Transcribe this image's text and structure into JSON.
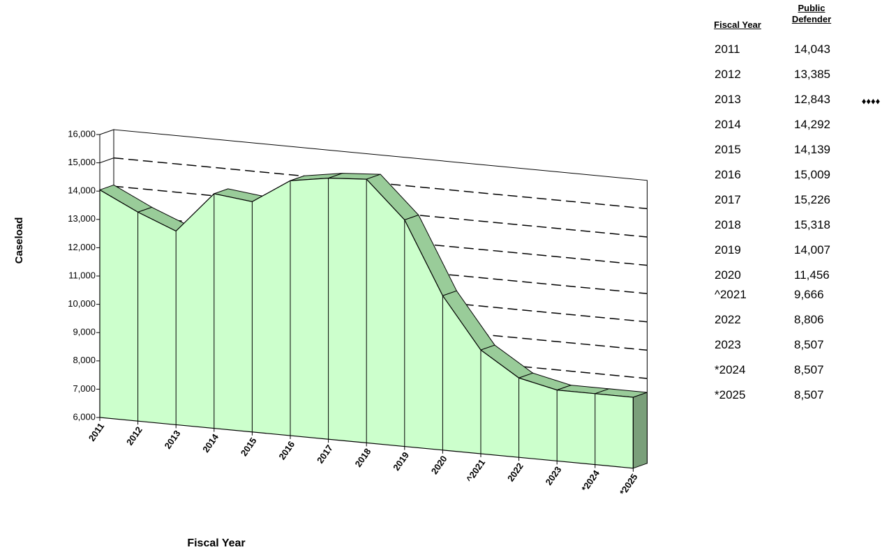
{
  "chart_data": {
    "type": "area3d",
    "y_label": "Caseload",
    "x_label": "Fiscal Year",
    "categories": [
      "2011",
      "2012",
      "2013",
      "2014",
      "2015",
      "2016",
      "2017",
      "2018",
      "2019",
      "2020",
      "^2021",
      "2022",
      "2023",
      "*2024",
      "*2025"
    ],
    "values": [
      14043,
      13385,
      12843,
      14292,
      14139,
      15009,
      15226,
      15318,
      14007,
      11456,
      9666,
      8806,
      8507,
      8507,
      8507
    ],
    "value_labels": [
      "14,043",
      "13,385",
      "12,843",
      "14,292",
      "14,139",
      "15,009",
      "15,226",
      "15,318",
      "14,007",
      "11,456",
      "9,666",
      "8,806",
      "8,507",
      "8,507",
      "8,507"
    ],
    "color": "#ccffcc",
    "top_color": "#99cc99",
    "side_color": "#7a9f7a",
    "ylim": [
      6000,
      16000
    ],
    "yticks": [
      {
        "value": 6000,
        "label": "6,000"
      },
      {
        "value": 7000,
        "label": "7,000"
      },
      {
        "value": 8000,
        "label": "8,000"
      },
      {
        "value": 9000,
        "label": "9,000"
      },
      {
        "value": 10000,
        "label": "10,000"
      },
      {
        "value": 11000,
        "label": "11,000"
      },
      {
        "value": 12000,
        "label": "12,000"
      },
      {
        "value": 13000,
        "label": "13,000"
      },
      {
        "value": 14000,
        "label": "14,000"
      },
      {
        "value": 15000,
        "label": "15,000"
      },
      {
        "value": 16000,
        "label": "16,000"
      }
    ],
    "grid": true
  },
  "table": {
    "columns": [
      "Fiscal Year",
      "Public Defender"
    ]
  },
  "annotation": "♦♦♦♦"
}
